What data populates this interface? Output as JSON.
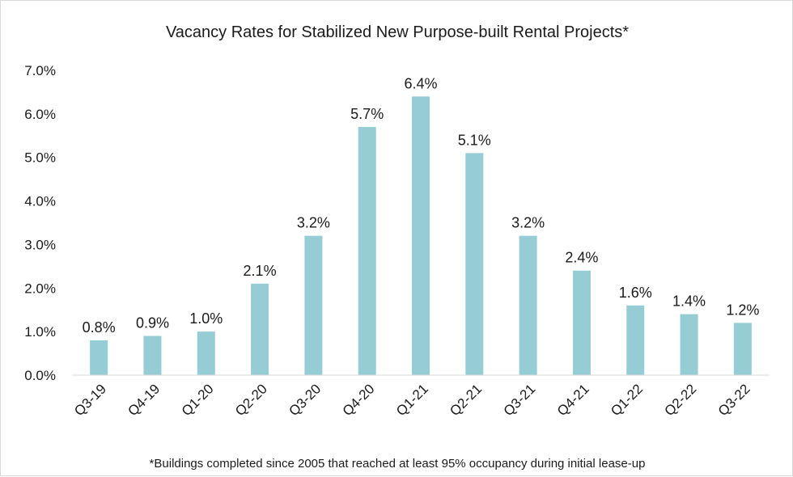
{
  "chart_data": {
    "type": "bar",
    "title": "Vacancy Rates for Stabilized New Purpose-built Rental Projects*",
    "categories": [
      "Q3-19",
      "Q4-19",
      "Q1-20",
      "Q2-20",
      "Q3-20",
      "Q4-20",
      "Q1-21",
      "Q2-21",
      "Q3-21",
      "Q4-21",
      "Q1-22",
      "Q2-22",
      "Q3-22"
    ],
    "values": [
      0.8,
      0.9,
      1.0,
      2.1,
      3.2,
      5.7,
      6.4,
      5.1,
      3.2,
      2.4,
      1.6,
      1.4,
      1.2
    ],
    "data_labels": [
      "0.8%",
      "0.9%",
      "1.0%",
      "2.1%",
      "3.2%",
      "5.7%",
      "6.4%",
      "5.1%",
      "3.2%",
      "2.4%",
      "1.6%",
      "1.4%",
      "1.2%"
    ],
    "yticks": [
      0,
      1,
      2,
      3,
      4,
      5,
      6,
      7
    ],
    "ytick_labels": [
      "0.0%",
      "1.0%",
      "2.0%",
      "3.0%",
      "4.0%",
      "5.0%",
      "6.0%",
      "7.0%"
    ],
    "ylim": [
      0,
      7
    ],
    "xlabel": "",
    "ylabel": "",
    "grid": false,
    "legend": "none",
    "bar_color": "#96cdd4",
    "footnote": "*Buildings completed since 2005 that reached at least 95% occupancy during initial lease-up"
  }
}
